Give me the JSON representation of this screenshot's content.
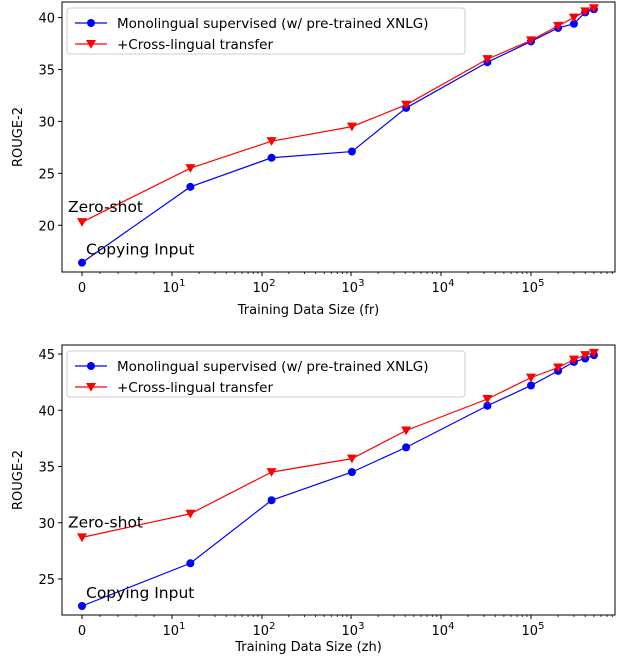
{
  "chart_data": [
    {
      "type": "line",
      "xlabel": "Training Data Size (fr)",
      "ylabel": "ROUGE-2",
      "xscale": "symlog",
      "xticks": [
        "0",
        "10^1",
        "10^2",
        "10^3",
        "10^4",
        "10^5"
      ],
      "yticks": [
        20,
        25,
        30,
        35,
        40
      ],
      "ylim": [
        15.5,
        41.5
      ],
      "legend_position": "top-left",
      "series": [
        {
          "name": "Monolingual supervised (w/ pre-trained XNLG)",
          "color": "#0000ff",
          "marker": "circle",
          "x": [
            0,
            16,
            128,
            1024,
            4096,
            32768,
            100000,
            200000,
            300000,
            400000,
            500000
          ],
          "y": [
            16.4,
            23.7,
            26.5,
            27.1,
            31.3,
            35.7,
            37.7,
            39.0,
            39.4,
            40.5,
            40.8
          ]
        },
        {
          "name": "+Cross-lingual transfer",
          "color": "#ff0000",
          "marker": "triangle-down",
          "x": [
            0,
            16,
            128,
            1024,
            4096,
            32768,
            100000,
            200000,
            300000,
            400000,
            500000
          ],
          "y": [
            20.3,
            25.5,
            28.1,
            29.5,
            31.6,
            36.0,
            37.8,
            39.2,
            40.0,
            40.6,
            40.9
          ]
        }
      ],
      "annotations": [
        {
          "text": "Zero-shot",
          "x": 0,
          "y": 21.3
        },
        {
          "text": "Copying Input",
          "x": 0,
          "y": 17.2
        }
      ]
    },
    {
      "type": "line",
      "xlabel": "Training Data Size (zh)",
      "ylabel": "ROUGE-2",
      "xscale": "symlog",
      "xticks": [
        "0",
        "10^1",
        "10^2",
        "10^3",
        "10^4",
        "10^5"
      ],
      "yticks": [
        25,
        30,
        35,
        40,
        45
      ],
      "ylim": [
        21.8,
        45.8
      ],
      "legend_position": "top-left",
      "series": [
        {
          "name": "Monolingual supervised (w/ pre-trained XNLG)",
          "color": "#0000ff",
          "marker": "circle",
          "x": [
            0,
            16,
            128,
            1024,
            4096,
            32768,
            100000,
            200000,
            300000,
            400000,
            500000
          ],
          "y": [
            22.6,
            26.4,
            32.0,
            34.5,
            36.7,
            40.4,
            42.2,
            43.5,
            44.3,
            44.6,
            44.9
          ]
        },
        {
          "name": "+Cross-lingual transfer",
          "color": "#ff0000",
          "marker": "triangle-down",
          "x": [
            0,
            16,
            128,
            1024,
            4096,
            32768,
            100000,
            200000,
            300000,
            400000,
            500000
          ],
          "y": [
            28.7,
            30.8,
            34.5,
            35.7,
            38.2,
            41.0,
            42.9,
            43.8,
            44.5,
            44.9,
            45.1
          ]
        }
      ],
      "annotations": [
        {
          "text": "Zero-shot",
          "x": 0,
          "y": 29.6
        },
        {
          "text": "Copying Input",
          "x": 0,
          "y": 23.3
        }
      ]
    }
  ]
}
